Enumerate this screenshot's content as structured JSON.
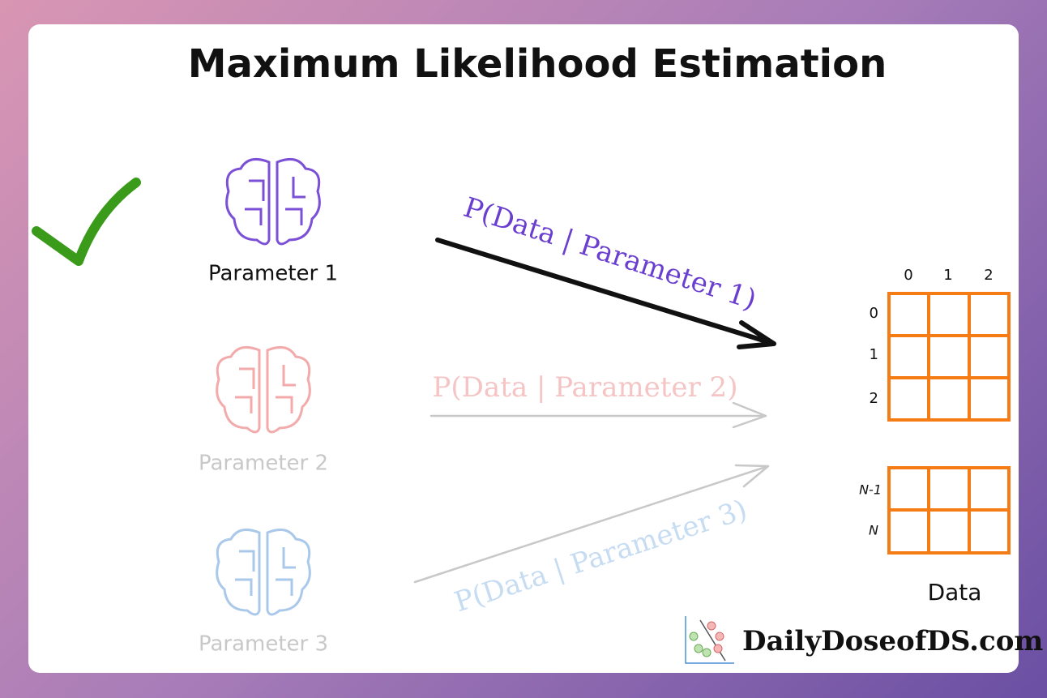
{
  "header": {
    "title": "Maximum Likelihood Estimation"
  },
  "parameters": [
    {
      "label": "Parameter 1",
      "likelihood": "P(Data | Parameter 1)"
    },
    {
      "label": "Parameter 2",
      "likelihood": "P(Data | Parameter 2)"
    },
    {
      "label": "Parameter 3",
      "likelihood": "P(Data | Parameter 3)"
    }
  ],
  "data_grid": {
    "columns": [
      "0",
      "1",
      "2"
    ],
    "rows": [
      "0",
      "1",
      "2",
      "N-1",
      "N"
    ],
    "label": "Data"
  },
  "brand": "DailyDoseofDS.com"
}
